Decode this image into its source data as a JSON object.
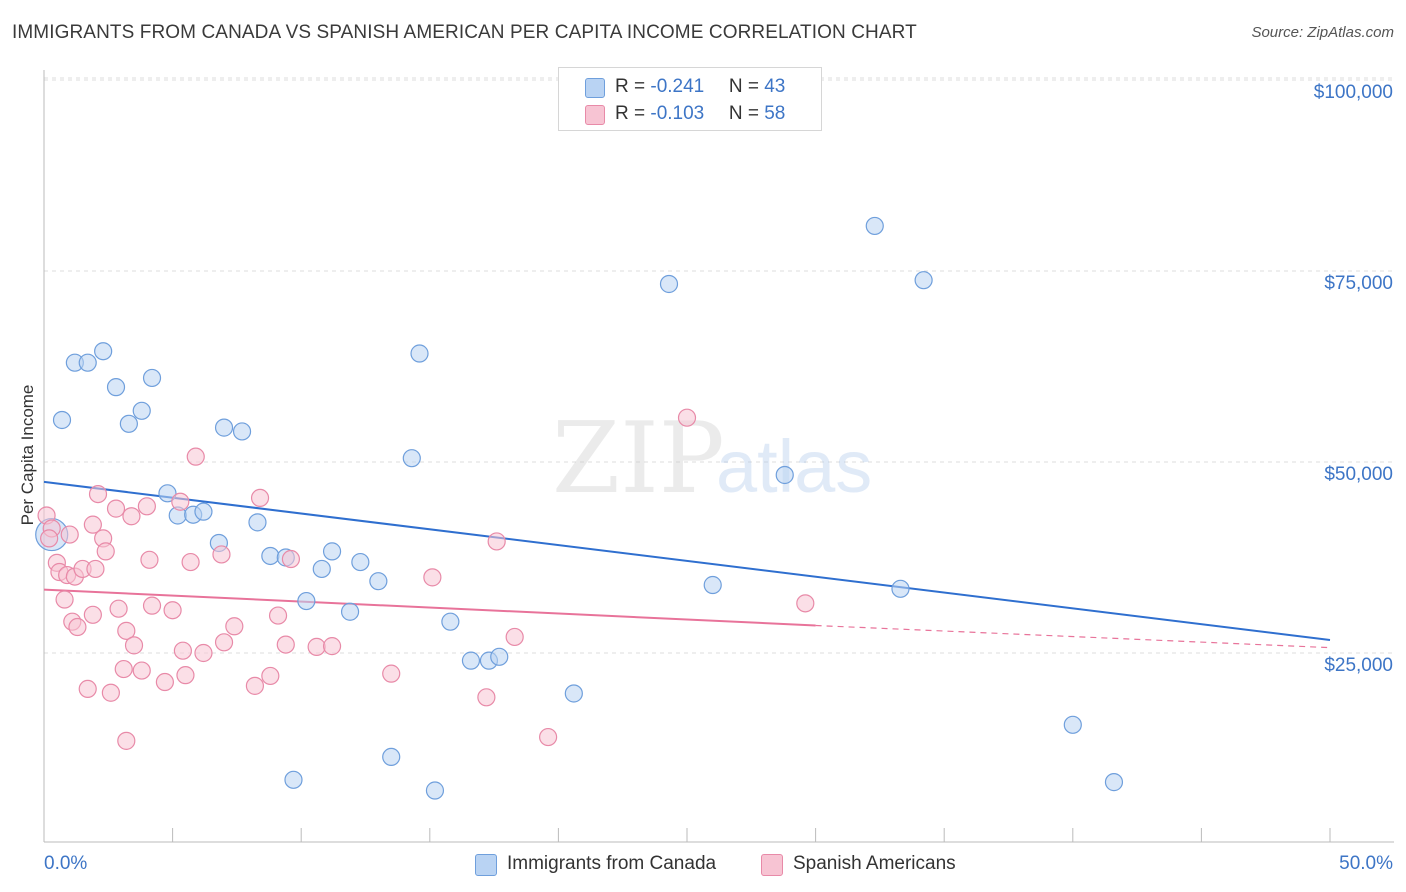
{
  "header": {
    "title": "IMMIGRANTS FROM CANADA VS SPANISH AMERICAN PER CAPITA INCOME CORRELATION CHART",
    "source": "Source: ZipAtlas.com"
  },
  "watermark": {
    "zip": "ZIP",
    "atlas": "atlas"
  },
  "legend": {
    "rows": [
      {
        "r_label": "R = ",
        "r_value": "-0.241",
        "n_label": "N = ",
        "n_value": "43"
      },
      {
        "r_label": "R = ",
        "r_value": "-0.103",
        "n_label": "N = ",
        "n_value": "58"
      }
    ]
  },
  "colors": {
    "blue_fill": "#b9d3f3",
    "blue_stroke": "#6f9fdc",
    "blue_line": "#2f6fcf",
    "pink_fill": "#f7c4d3",
    "pink_stroke": "#e88aa8",
    "pink_line": "#e8739a",
    "axis_text": "#3d75c6",
    "grid": "#dddddd"
  },
  "chart_data": {
    "type": "scatter",
    "title": "IMMIGRANTS FROM CANADA VS SPANISH AMERICAN PER CAPITA INCOME CORRELATION CHART",
    "xlabel": "",
    "ylabel": "Per Capita Income",
    "xlim": [
      0,
      50
    ],
    "ylim": [
      0,
      105000
    ],
    "x_tick_labels": [
      "0.0%",
      "50.0%"
    ],
    "y_ticks": [
      {
        "value": 25000,
        "label": "$25,000"
      },
      {
        "value": 50000,
        "label": "$50,000"
      },
      {
        "value": 75000,
        "label": "$75,000"
      },
      {
        "value": 100000,
        "label": "$100,000"
      }
    ],
    "grid": "horizontal dashed",
    "legend_position": "bottom-center",
    "series": [
      {
        "name": "Immigrants from Canada",
        "color": "#6f9fdc",
        "points": [
          [
            0.3,
            40500
          ],
          [
            0.7,
            55500
          ],
          [
            1.2,
            63000
          ],
          [
            1.7,
            63000
          ],
          [
            2.3,
            64500
          ],
          [
            2.8,
            59800
          ],
          [
            3.3,
            55000
          ],
          [
            3.8,
            56700
          ],
          [
            4.2,
            61000
          ],
          [
            4.8,
            45900
          ],
          [
            5.2,
            43000
          ],
          [
            5.8,
            43100
          ],
          [
            6.2,
            43500
          ],
          [
            6.8,
            39400
          ],
          [
            7.0,
            54500
          ],
          [
            7.7,
            54000
          ],
          [
            8.3,
            42100
          ],
          [
            8.8,
            37700
          ],
          [
            9.4,
            37500
          ],
          [
            9.7,
            8400
          ],
          [
            10.2,
            31800
          ],
          [
            10.8,
            36000
          ],
          [
            11.2,
            38300
          ],
          [
            11.9,
            30400
          ],
          [
            12.3,
            36900
          ],
          [
            13.0,
            34400
          ],
          [
            13.5,
            11400
          ],
          [
            14.3,
            50500
          ],
          [
            14.6,
            64200
          ],
          [
            15.2,
            7000
          ],
          [
            15.8,
            29100
          ],
          [
            16.6,
            24000
          ],
          [
            17.3,
            24000
          ],
          [
            17.7,
            24500
          ],
          [
            20.6,
            19700
          ],
          [
            24.3,
            73300
          ],
          [
            26.0,
            33900
          ],
          [
            28.8,
            48300
          ],
          [
            32.3,
            80900
          ],
          [
            33.3,
            33400
          ],
          [
            34.2,
            73800
          ],
          [
            40.0,
            15600
          ],
          [
            41.6,
            8100
          ]
        ],
        "trend": {
          "x": [
            0,
            50
          ],
          "y": [
            47400,
            26700
          ]
        }
      },
      {
        "name": "Spanish Americans",
        "color": "#e88aa8",
        "points": [
          [
            0.1,
            43000
          ],
          [
            0.3,
            41300
          ],
          [
            0.5,
            36800
          ],
          [
            0.6,
            35600
          ],
          [
            0.8,
            32000
          ],
          [
            0.9,
            35200
          ],
          [
            1.1,
            29100
          ],
          [
            1.2,
            35000
          ],
          [
            1.3,
            28400
          ],
          [
            1.5,
            36000
          ],
          [
            1.7,
            20300
          ],
          [
            1.9,
            30000
          ],
          [
            2.0,
            36000
          ],
          [
            2.1,
            45800
          ],
          [
            2.3,
            40000
          ],
          [
            2.4,
            38300
          ],
          [
            2.6,
            19800
          ],
          [
            2.8,
            43900
          ],
          [
            2.9,
            30800
          ],
          [
            3.1,
            22900
          ],
          [
            3.2,
            27900
          ],
          [
            3.2,
            13500
          ],
          [
            3.4,
            42900
          ],
          [
            3.5,
            26000
          ],
          [
            3.8,
            22700
          ],
          [
            4.0,
            44200
          ],
          [
            4.1,
            37200
          ],
          [
            4.2,
            31200
          ],
          [
            4.7,
            21200
          ],
          [
            5.0,
            30600
          ],
          [
            5.3,
            44800
          ],
          [
            5.4,
            25300
          ],
          [
            5.5,
            22100
          ],
          [
            5.7,
            36900
          ],
          [
            5.9,
            50700
          ],
          [
            6.2,
            25000
          ],
          [
            6.9,
            37900
          ],
          [
            7.0,
            26400
          ],
          [
            7.4,
            28500
          ],
          [
            8.2,
            20700
          ],
          [
            8.4,
            45300
          ],
          [
            8.8,
            22000
          ],
          [
            9.1,
            29900
          ],
          [
            9.4,
            26100
          ],
          [
            9.6,
            37300
          ],
          [
            10.6,
            25800
          ],
          [
            11.2,
            25900
          ],
          [
            13.5,
            22300
          ],
          [
            15.1,
            34900
          ],
          [
            17.2,
            19200
          ],
          [
            17.6,
            39600
          ],
          [
            18.3,
            27100
          ],
          [
            19.6,
            14000
          ],
          [
            25.0,
            55800
          ],
          [
            29.6,
            31500
          ],
          [
            0.2,
            40000
          ],
          [
            1.0,
            40500
          ],
          [
            1.9,
            41800
          ]
        ],
        "trend": {
          "x": [
            0,
            30
          ],
          "y": [
            33300,
            28600
          ]
        },
        "trend_dashed": {
          "x": [
            30,
            50
          ],
          "y": [
            28600,
            25700
          ]
        }
      }
    ]
  }
}
